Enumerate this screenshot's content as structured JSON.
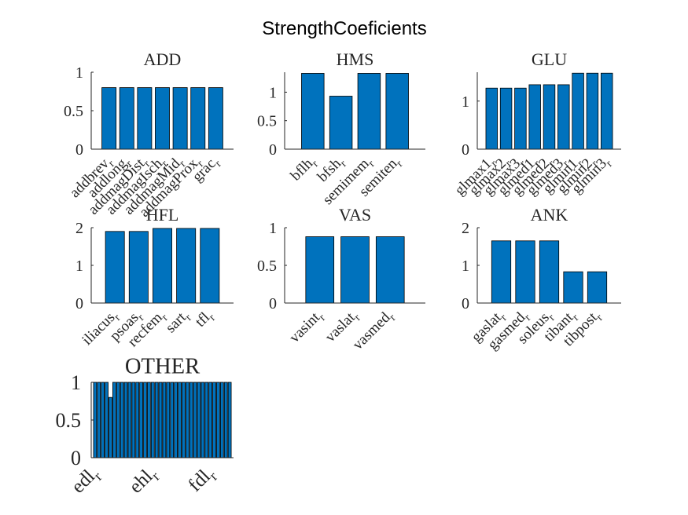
{
  "title": "StrengthCoeficients",
  "chart_data": [
    {
      "type": "bar",
      "title": "ADD",
      "categories": [
        "addbrev",
        "addlong",
        "addmagDist",
        "addmagIsch",
        "addmagMid",
        "addmagProx",
        "grac"
      ],
      "category_subscript": "r",
      "values": [
        0.8,
        0.8,
        0.8,
        0.8,
        0.8,
        0.8,
        0.8
      ],
      "color": "#0072bd",
      "ylim": [
        0,
        1
      ],
      "yticks": [
        0,
        0.5,
        1
      ]
    },
    {
      "type": "bar",
      "title": "HMS",
      "categories": [
        "bflh",
        "bfsh",
        "semimem",
        "semiten"
      ],
      "category_subscript": "r",
      "values": [
        1.33,
        0.93,
        1.33,
        1.33
      ],
      "color": "#0072bd",
      "ylim": [
        0,
        1.35
      ],
      "yticks": [
        0,
        0.5,
        1
      ]
    },
    {
      "type": "bar",
      "title": "GLU",
      "categories": [
        "glmax1",
        "glmax2",
        "glmax3",
        "glmed1",
        "glmed2",
        "glmed3",
        "glmin1",
        "glmin2",
        "glmin3"
      ],
      "category_subscript": "r",
      "values": [
        1.27,
        1.27,
        1.27,
        1.34,
        1.34,
        1.34,
        1.58,
        1.58,
        1.58
      ],
      "color": "#0072bd",
      "ylim": [
        0,
        1.6
      ],
      "yticks": [
        0,
        1
      ]
    },
    {
      "type": "bar",
      "title": "HFL",
      "categories": [
        "iliacus",
        "psoas",
        "recfem",
        "sart",
        "tfl"
      ],
      "category_subscript": "r",
      "values": [
        1.9,
        1.9,
        1.98,
        1.98,
        1.98
      ],
      "color": "#0072bd",
      "ylim": [
        0,
        2
      ],
      "yticks": [
        0,
        1,
        2
      ]
    },
    {
      "type": "bar",
      "title": "VAS",
      "categories": [
        "vasint",
        "vaslat",
        "vasmed"
      ],
      "category_subscript": "r",
      "values": [
        0.88,
        0.88,
        0.88
      ],
      "color": "#0072bd",
      "ylim": [
        0,
        1
      ],
      "yticks": [
        0,
        0.5,
        1
      ]
    },
    {
      "type": "bar",
      "title": "ANK",
      "categories": [
        "gaslat",
        "gasmed",
        "soleus",
        "tibant",
        "tibpost"
      ],
      "category_subscript": "r",
      "values": [
        1.65,
        1.65,
        1.65,
        0.83,
        0.83
      ],
      "color": "#0072bd",
      "ylim": [
        0,
        2
      ],
      "yticks": [
        0,
        1,
        2
      ]
    },
    {
      "type": "bar",
      "title": "OTHER",
      "categories": [
        "edl",
        null,
        null,
        null,
        null,
        null,
        null,
        null,
        null,
        null,
        null,
        null,
        null,
        null,
        null,
        "ehl",
        null,
        null,
        null,
        null,
        null,
        null,
        null,
        null,
        null,
        null,
        null,
        null,
        null,
        null,
        "fdl",
        null,
        null,
        null,
        null,
        null
      ],
      "category_subscript": "r",
      "values": [
        1,
        1,
        1,
        1,
        0.8,
        1,
        1,
        1,
        1,
        1,
        1,
        1,
        1,
        1,
        1,
        1,
        1,
        1,
        1,
        1,
        1,
        1,
        1,
        1,
        1,
        1,
        1,
        1,
        1,
        1,
        1,
        1,
        1,
        1,
        1,
        1
      ],
      "color": "#0072bd",
      "ylim": [
        0,
        1
      ],
      "yticks": [
        0,
        0.5,
        1
      ]
    }
  ]
}
